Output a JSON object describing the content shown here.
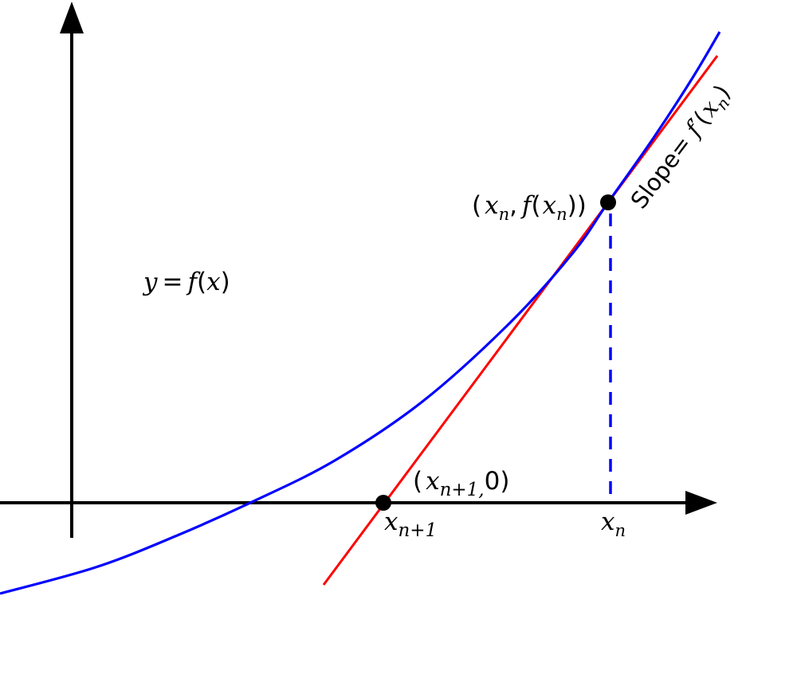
{
  "labels": {
    "curve_y": "y",
    "curve_eq": "=",
    "curve_f": "f",
    "curve_open": "(",
    "curve_x": "x",
    "curve_close": ")",
    "point_open": "(",
    "point_x": "x",
    "point_n": "n",
    "point_comma": ",",
    "point_f": "f",
    "point_open2": "(",
    "point_x2": "x",
    "point_n2": "n",
    "point_close": "))",
    "root_open": "(",
    "root_x": "x",
    "root_sub": "n+1,",
    "root_zero": "0)",
    "tick_xn1": "x",
    "tick_xn1_sub": "n+1",
    "tick_xn": "x",
    "tick_xn_sub": "n",
    "slope_text": "Slope= ",
    "slope_f": "f",
    "slope_prime": "′",
    "slope_open": "(",
    "slope_x": "x",
    "slope_n": "n",
    "slope_close": ")"
  },
  "colors": {
    "curve": "#0000ff",
    "tangent": "#ff0000",
    "axes": "#000000",
    "dashed": "#0000ff",
    "points": "#000000"
  }
}
